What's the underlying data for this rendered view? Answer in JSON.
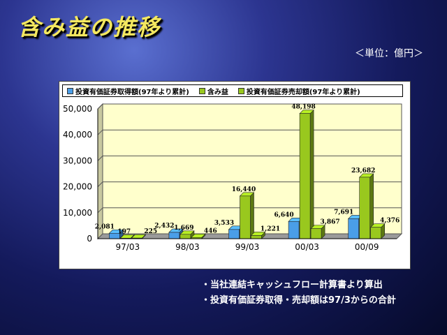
{
  "slide": {
    "title": "含み益の推移",
    "unit": "＜単位：億円＞"
  },
  "notes": [
    "・当社連結キャッシュフロー計算書より算出",
    "・投資有価証券取得・売却額は97/3からの合計"
  ],
  "colors": {
    "acquired": "#4a9ee8",
    "unrealized": "#99c81e",
    "sold": "#99c81e",
    "plot_bg": "#ffffcc"
  },
  "chart_data": {
    "type": "bar",
    "categories": [
      "97/03",
      "98/03",
      "99/03",
      "00/03",
      "00/09"
    ],
    "series": [
      {
        "name": "投資有価証券取得額(97年より累計)",
        "values": [
          2081,
          2432,
          3533,
          6640,
          7691
        ]
      },
      {
        "name": "含み益",
        "values": [
          197,
          1669,
          16440,
          48198,
          23682
        ]
      },
      {
        "name": "投資有価証券売却額(97年より累計)",
        "values": [
          225,
          446,
          1221,
          3867,
          4376
        ]
      }
    ],
    "data_labels": [
      [
        "2,081",
        "197",
        "225"
      ],
      [
        "2,432",
        "1,669",
        "446"
      ],
      [
        "3,533",
        "16,440",
        "1,221"
      ],
      [
        "6,640",
        "48,198",
        "3,867"
      ],
      [
        "7,691",
        "23,682",
        "4,376"
      ]
    ],
    "yticks": [
      0,
      10000,
      20000,
      30000,
      40000,
      50000
    ],
    "ytick_labels": [
      "0",
      "10,000",
      "20,000",
      "30,000",
      "40,000",
      "50,000"
    ],
    "ylim": [
      0,
      50000
    ],
    "legend_position": "top",
    "grid": true
  }
}
